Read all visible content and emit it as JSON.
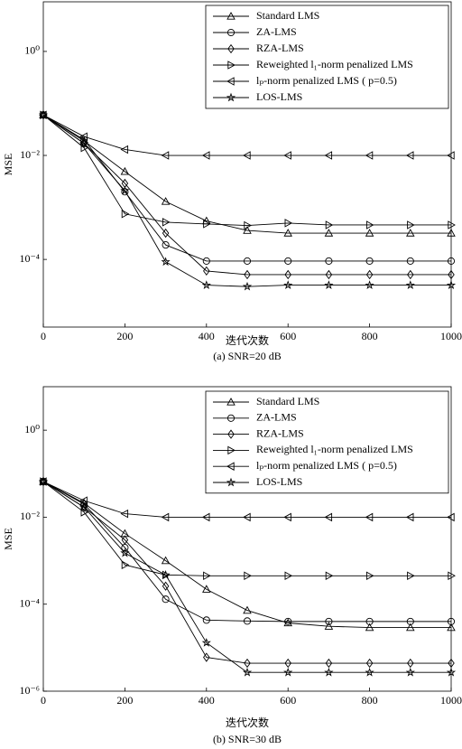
{
  "chart_data": [
    {
      "type": "line",
      "caption": "(a) SNR=20 dB",
      "xlabel": "迭代次数",
      "ylabel": "MSE",
      "log_y": true,
      "x": [
        0,
        100,
        200,
        300,
        400,
        500,
        600,
        700,
        800,
        900,
        1000
      ],
      "xlim": [
        0,
        1000
      ],
      "xticks": [
        0,
        200,
        400,
        600,
        800,
        1000
      ],
      "ylim": [
        5e-06,
        9
      ],
      "yticks": [
        {
          "value": 1,
          "label": "10⁰"
        },
        {
          "value": 0.01,
          "label": "10⁻²"
        },
        {
          "value": 0.0001,
          "label": "10⁻⁴"
        }
      ],
      "legend": "upper right",
      "series": [
        {
          "name": "Standard LMS",
          "color": "#000000",
          "marker": "triangle-up",
          "values": [
            0.06,
            0.019,
            0.0049,
            0.0013,
            0.00055,
            0.00036,
            0.00032,
            0.00032,
            0.00032,
            0.00032,
            0.00032
          ]
        },
        {
          "name": "ZA-LMS",
          "color": "#000000",
          "marker": "circle",
          "values": [
            0.06,
            0.02,
            0.002,
            0.00019,
            9.3e-05,
            9.3e-05,
            9.3e-05,
            9.3e-05,
            9.3e-05,
            9.3e-05,
            9.3e-05
          ]
        },
        {
          "name": "RZA-LMS",
          "color": "#000000",
          "marker": "diamond",
          "values": [
            0.06,
            0.017,
            0.0029,
            0.00032,
            6e-05,
            5.1e-05,
            5.1e-05,
            5.1e-05,
            5.1e-05,
            5.1e-05,
            5.1e-05
          ]
        },
        {
          "name": "Reweighted l₁-norm penalized LMS",
          "color": "#000000",
          "marker": "triangle-right",
          "values": [
            0.06,
            0.014,
            0.00075,
            0.00052,
            0.00048,
            0.00045,
            0.0005,
            0.00046,
            0.00046,
            0.00046,
            0.00046
          ]
        },
        {
          "name": "lₚ-norm penalized LMS ( p=0.5)",
          "color": "#000000",
          "marker": "triangle-left",
          "values": [
            0.06,
            0.023,
            0.013,
            0.01,
            0.01,
            0.01,
            0.01,
            0.01,
            0.01,
            0.01,
            0.01
          ]
        },
        {
          "name": "LOS-LMS",
          "color": "#000000",
          "marker": "star",
          "values": [
            0.06,
            0.017,
            0.0021,
            9e-05,
            3.2e-05,
            3e-05,
            3.2e-05,
            3.2e-05,
            3.2e-05,
            3.2e-05,
            3.2e-05
          ]
        }
      ]
    },
    {
      "type": "line",
      "caption": "(b) SNR=30 dB",
      "xlabel": "迭代次数",
      "ylabel": "MSE",
      "log_y": true,
      "x": [
        0,
        100,
        200,
        300,
        400,
        500,
        600,
        700,
        800,
        900,
        1000
      ],
      "xlim": [
        0,
        1000
      ],
      "xticks": [
        0,
        200,
        400,
        600,
        800,
        1000
      ],
      "ylim": [
        1e-06,
        10
      ],
      "yticks": [
        {
          "value": 1,
          "label": "10⁰"
        },
        {
          "value": 0.01,
          "label": "10⁻²"
        },
        {
          "value": 0.0001,
          "label": "10⁻⁴"
        },
        {
          "value": 1e-06,
          "label": "10⁻⁶"
        }
      ],
      "legend": "upper right",
      "series": [
        {
          "name": "Standard LMS",
          "color": "#000000",
          "marker": "triangle-up",
          "values": [
            0.066,
            0.021,
            0.0042,
            0.001,
            0.00022,
            7.2e-05,
            3.7e-05,
            3.1e-05,
            2.9e-05,
            2.9e-05,
            2.9e-05
          ]
        },
        {
          "name": "ZA-LMS",
          "color": "#000000",
          "marker": "circle",
          "values": [
            0.066,
            0.02,
            0.002,
            0.00013,
            4.3e-05,
            4.1e-05,
            4e-05,
            4e-05,
            4e-05,
            4e-05,
            4e-05
          ]
        },
        {
          "name": "RZA-LMS",
          "color": "#000000",
          "marker": "diamond",
          "values": [
            0.066,
            0.017,
            0.003,
            0.00026,
            6e-06,
            4.4e-06,
            4.4e-06,
            4.4e-06,
            4.4e-06,
            4.4e-06,
            4.4e-06
          ]
        },
        {
          "name": "Reweighted l₁-norm penalized LMS",
          "color": "#000000",
          "marker": "triangle-right",
          "values": [
            0.066,
            0.013,
            0.0008,
            0.00047,
            0.00045,
            0.00045,
            0.00045,
            0.00045,
            0.00045,
            0.00045,
            0.00045
          ]
        },
        {
          "name": "lₚ-norm penalized LMS ( p=0.5)",
          "color": "#000000",
          "marker": "triangle-left",
          "values": [
            0.066,
            0.024,
            0.012,
            0.01,
            0.01,
            0.01,
            0.01,
            0.01,
            0.01,
            0.01,
            0.01
          ]
        },
        {
          "name": "LOS-LMS",
          "color": "#000000",
          "marker": "star",
          "values": [
            0.066,
            0.017,
            0.0015,
            0.00047,
            1.3e-05,
            2.7e-06,
            2.7e-06,
            2.7e-06,
            2.7e-06,
            2.7e-06,
            2.7e-06
          ]
        }
      ]
    }
  ]
}
